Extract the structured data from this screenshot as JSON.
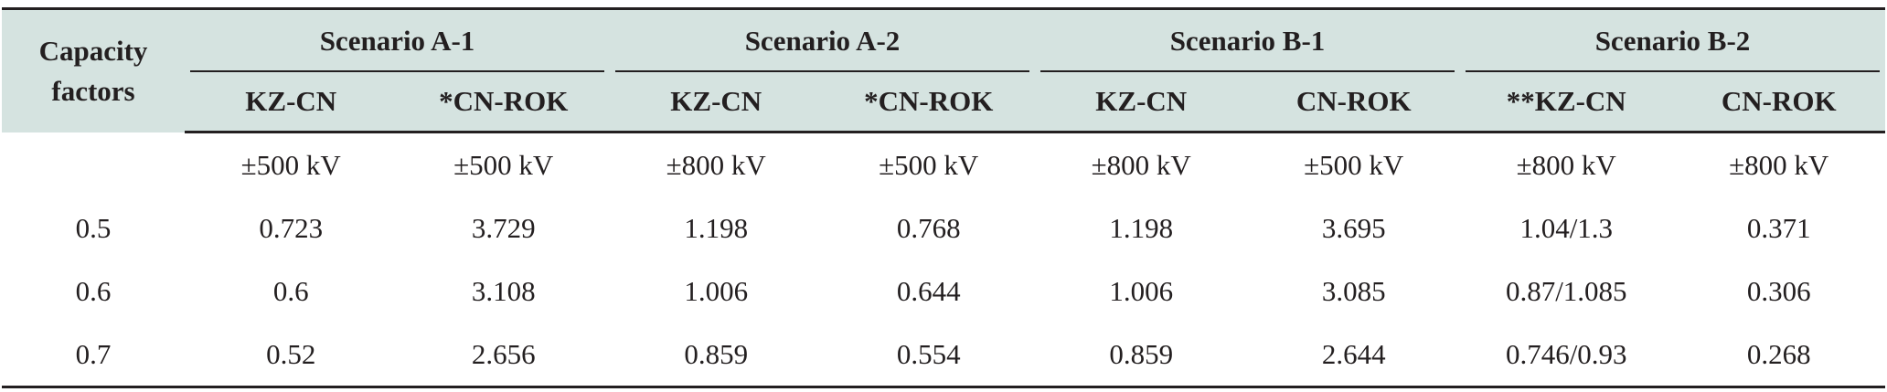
{
  "table": {
    "corner_header": [
      "Capacity",
      "factors"
    ],
    "groups": [
      {
        "label": "Scenario A-1",
        "subs": [
          "KZ-CN",
          "*CN-ROK"
        ]
      },
      {
        "label": "Scenario A-2",
        "subs": [
          "KZ-CN",
          "*CN-ROK"
        ]
      },
      {
        "label": "Scenario B-1",
        "subs": [
          "KZ-CN",
          "CN-ROK"
        ]
      },
      {
        "label": "Scenario B-2",
        "subs": [
          "**KZ-CN",
          "CN-ROK"
        ]
      }
    ],
    "rows": [
      {
        "factor": "",
        "cells": [
          "±500 kV",
          "±500 kV",
          "±800 kV",
          "±500 kV",
          "±800 kV",
          "±500 kV",
          "±800 kV",
          "±800 kV"
        ]
      },
      {
        "factor": "0.5",
        "cells": [
          "0.723",
          "3.729",
          "1.198",
          "0.768",
          "1.198",
          "3.695",
          "1.04/1.3",
          "0.371"
        ]
      },
      {
        "factor": "0.6",
        "cells": [
          "0.6",
          "3.108",
          "1.006",
          "0.644",
          "1.006",
          "3.085",
          "0.87/1.085",
          "0.306"
        ]
      },
      {
        "factor": "0.7",
        "cells": [
          "0.52",
          "2.656",
          "0.859",
          "0.554",
          "0.859",
          "2.644",
          "0.746/0.93",
          "0.268"
        ]
      }
    ]
  }
}
